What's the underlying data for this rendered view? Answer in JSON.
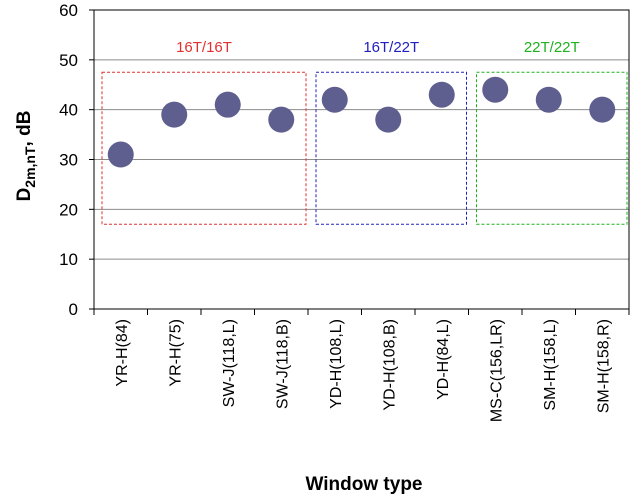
{
  "chart_data": {
    "type": "scatter",
    "categories": [
      "YR-H(84)",
      "YR-H(75)",
      "SW-J(118,L)",
      "SW-J(118,B)",
      "YD-H(108,L)",
      "YD-H(108,B)",
      "YD-H(84,L)",
      "MS-C(156,LR)",
      "SM-H(158,L)",
      "SM-H(158,R)"
    ],
    "values": [
      31,
      39,
      41,
      38,
      42,
      38,
      43,
      44,
      42,
      40
    ],
    "xlabel": "Window type",
    "ylabel": {
      "main": "D",
      "sub": "2m,nT",
      "suffix": ", dB"
    },
    "ylim": [
      0,
      60
    ],
    "yticks": [
      0,
      10,
      20,
      30,
      40,
      50,
      60
    ],
    "grid": true,
    "marker_color": "#5f5f8f",
    "groups": [
      {
        "label": "16T/16T",
        "color": "#e03030",
        "from": 0,
        "to": 3
      },
      {
        "label": "16T/22T",
        "color": "#2020c0",
        "from": 4,
        "to": 6
      },
      {
        "label": "22T/22T",
        "color": "#20b020",
        "from": 7,
        "to": 9
      }
    ]
  }
}
